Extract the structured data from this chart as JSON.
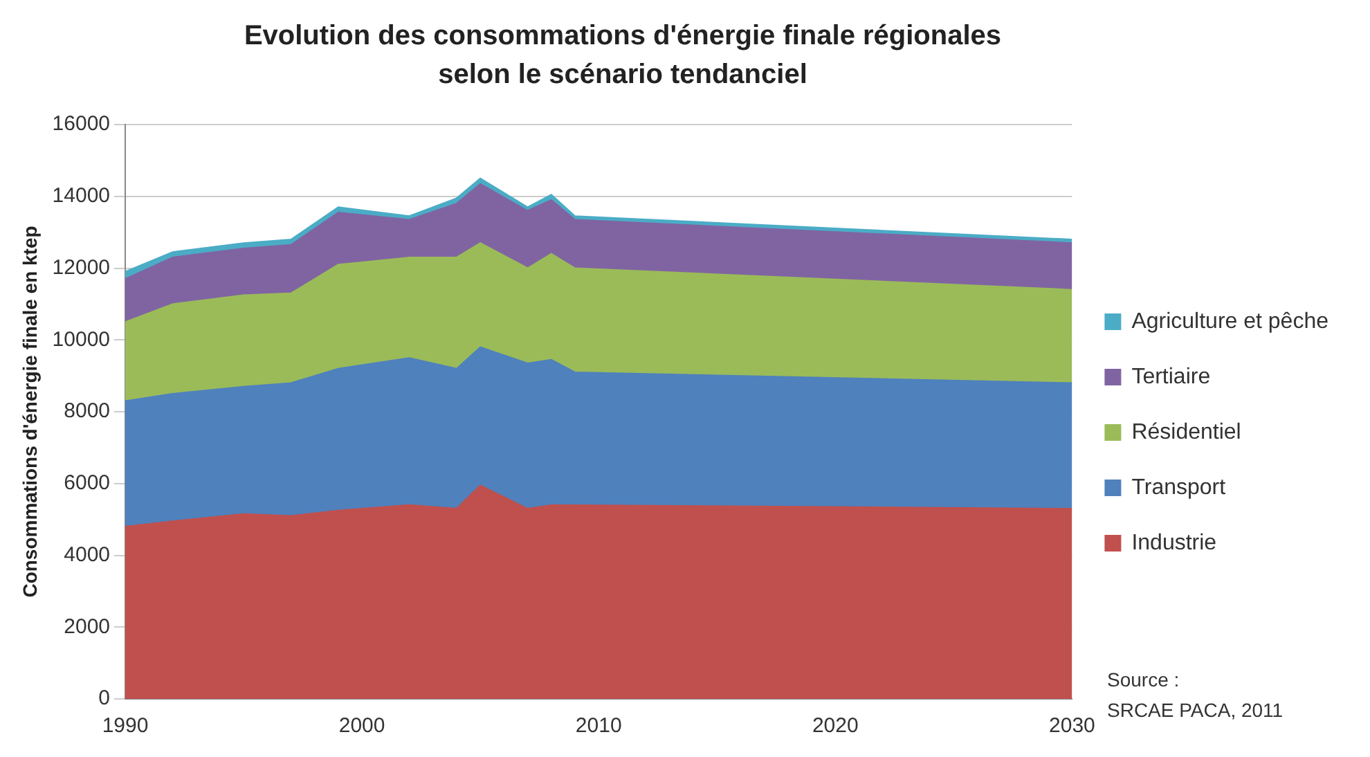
{
  "chart_data": {
    "type": "area",
    "title": "Evolution des consommations d'énergie finale régionales selon le scénario tendanciel",
    "ylabel": "Consommations d'énergie finale en ktep",
    "annotations": [
      "Source :\nSRCAE PACA, 2011"
    ],
    "x": [
      1990,
      1992,
      1995,
      1997,
      1999,
      2002,
      2004,
      2005,
      2007,
      2008,
      2009,
      2030
    ],
    "stacked": true,
    "xlim": [
      1990,
      2030
    ],
    "xticks": [
      1990,
      2000,
      2010,
      2020,
      2030
    ],
    "ylim": [
      0,
      16000
    ],
    "yticks": [
      0,
      2000,
      4000,
      6000,
      8000,
      10000,
      12000,
      14000,
      16000
    ],
    "grid": "y",
    "legend": "right",
    "series": [
      {
        "name": "Industrie",
        "color": "#c0504d",
        "values": [
          4800,
          4950,
          5150,
          5100,
          5250,
          5400,
          5300,
          5950,
          5300,
          5400,
          5400,
          5300
        ]
      },
      {
        "name": "Transport",
        "color": "#4f81bd",
        "values": [
          3500,
          3550,
          3550,
          3700,
          3950,
          4100,
          3900,
          3850,
          4050,
          4050,
          3700,
          3500
        ]
      },
      {
        "name": "Résidentiel",
        "color": "#9bbb59",
        "values": [
          2200,
          2500,
          2550,
          2500,
          2900,
          2800,
          3100,
          2900,
          2650,
          2950,
          2900,
          2600
        ]
      },
      {
        "name": "Tertiaire",
        "color": "#8064a2",
        "values": [
          1200,
          1300,
          1300,
          1350,
          1450,
          1050,
          1500,
          1650,
          1600,
          1500,
          1350,
          1300
        ]
      },
      {
        "name": "Agriculture et pêche",
        "color": "#4bacc6",
        "values": [
          200,
          150,
          150,
          150,
          150,
          100,
          150,
          150,
          100,
          150,
          100,
          100
        ]
      }
    ]
  }
}
